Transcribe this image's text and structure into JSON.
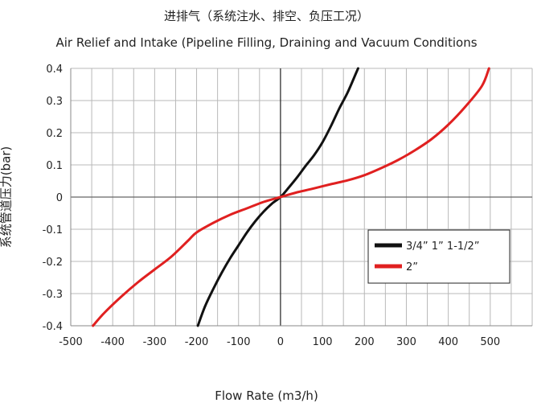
{
  "chart_data": {
    "type": "line",
    "title": "进排气（系统注水、排空、负压工况）",
    "subtitle": "Air Relief and Intake (Pipeline Filling, Draining and Vacuum Conditions",
    "xlabel": "Flow Rate (m3/h)",
    "ylabel": "系统管道压力(bar)",
    "xlim": [
      -500,
      600
    ],
    "ylim": [
      -0.4,
      0.4
    ],
    "x_ticks": [
      -500,
      -400,
      -300,
      -200,
      -100,
      0,
      100,
      200,
      300,
      400,
      500
    ],
    "y_ticks": [
      -0.4,
      -0.3,
      -0.2,
      -0.1,
      0,
      0.1,
      0.2,
      0.3,
      0.4
    ],
    "x_tick_labels": [
      "-500",
      "-400",
      "-300",
      "-200",
      "-100",
      "0",
      "100",
      "200",
      "300",
      "400",
      "500"
    ],
    "y_tick_labels": [
      "-0.4",
      "-0.3",
      "-0.2",
      "-0.1",
      "0",
      "0.1",
      "0.2",
      "0.3",
      "0.4"
    ],
    "grid": true,
    "legend_position": "right",
    "series": [
      {
        "name": "3/4” 1” 1-1/2”",
        "color": "#111111",
        "x": [
          -197,
          -180,
          -160,
          -140,
          -120,
          -100,
          -80,
          -60,
          -40,
          -20,
          0,
          20,
          40,
          60,
          80,
          100,
          120,
          140,
          160,
          180,
          185
        ],
        "y": [
          -0.4,
          -0.34,
          -0.285,
          -0.235,
          -0.19,
          -0.15,
          -0.11,
          -0.075,
          -0.045,
          -0.02,
          0,
          0.03,
          0.062,
          0.097,
          0.13,
          0.17,
          0.22,
          0.275,
          0.325,
          0.385,
          0.4
        ]
      },
      {
        "name": "2”",
        "color": "#e02020",
        "x": [
          -447,
          -420,
          -380,
          -340,
          -300,
          -260,
          -220,
          -200,
          -160,
          -120,
          -80,
          -40,
          0,
          40,
          80,
          120,
          160,
          200,
          240,
          280,
          320,
          360,
          400,
          440,
          480,
          497
        ],
        "y": [
          -0.4,
          -0.36,
          -0.31,
          -0.265,
          -0.225,
          -0.185,
          -0.135,
          -0.11,
          -0.08,
          -0.055,
          -0.035,
          -0.015,
          0,
          0.015,
          0.027,
          0.04,
          0.052,
          0.068,
          0.09,
          0.115,
          0.145,
          0.18,
          0.225,
          0.28,
          0.345,
          0.4
        ]
      }
    ]
  }
}
